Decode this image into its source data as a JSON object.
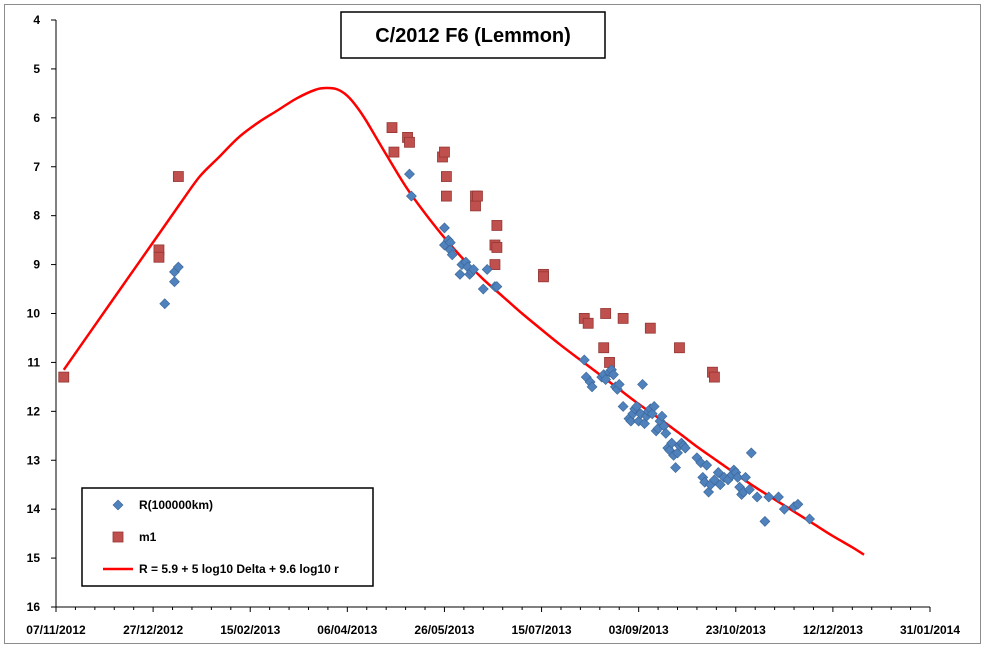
{
  "chart_data": {
    "type": "scatter",
    "title": "C/2012 F6 (Lemmon)",
    "xlabel": "",
    "ylabel": "",
    "x_axis": {
      "type": "date",
      "range": [
        "2012-11-07",
        "2014-01-31"
      ],
      "tick_labels": [
        "07/11/2012",
        "27/12/2012",
        "15/02/2013",
        "06/04/2013",
        "26/05/2013",
        "15/07/2013",
        "03/09/2013",
        "23/10/2013",
        "12/12/2013",
        "31/01/2014"
      ]
    },
    "y_axis": {
      "range": [
        4,
        16
      ],
      "reversed": true,
      "tick_labels": [
        "4",
        "5",
        "6",
        "7",
        "8",
        "9",
        "10",
        "11",
        "12",
        "13",
        "14",
        "15",
        "16"
      ]
    },
    "grid": false,
    "legend_position": "bottom-left",
    "series": [
      {
        "name": "R(100000km)",
        "marker": "diamond",
        "color": "#4f81bd",
        "points": [
          [
            "2013-01-02",
            9.8
          ],
          [
            "2013-01-07",
            9.35
          ],
          [
            "2013-01-07",
            9.15
          ],
          [
            "2013-01-09",
            9.05
          ],
          [
            "2013-05-08",
            7.15
          ],
          [
            "2013-05-09",
            7.6
          ],
          [
            "2013-05-26",
            8.25
          ],
          [
            "2013-05-26",
            8.6
          ],
          [
            "2013-05-28",
            8.5
          ],
          [
            "2013-05-29",
            8.55
          ],
          [
            "2013-05-29",
            8.7
          ],
          [
            "2013-05-30",
            8.8
          ],
          [
            "2013-06-03",
            9.2
          ],
          [
            "2013-06-04",
            9.0
          ],
          [
            "2013-06-06",
            8.95
          ],
          [
            "2013-06-07",
            9.05
          ],
          [
            "2013-06-08",
            9.2
          ],
          [
            "2013-06-09",
            9.15
          ],
          [
            "2013-06-10",
            9.1
          ],
          [
            "2013-06-15",
            9.5
          ],
          [
            "2013-06-17",
            9.1
          ],
          [
            "2013-06-21",
            9.45
          ],
          [
            "2013-06-22",
            9.45
          ],
          [
            "2013-08-06",
            10.95
          ],
          [
            "2013-08-07",
            11.3
          ],
          [
            "2013-08-09",
            11.4
          ],
          [
            "2013-08-10",
            11.5
          ],
          [
            "2013-08-15",
            11.3
          ],
          [
            "2013-08-16",
            11.25
          ],
          [
            "2013-08-17",
            11.35
          ],
          [
            "2013-08-19",
            11.2
          ],
          [
            "2013-08-20",
            11.15
          ],
          [
            "2013-08-21",
            11.25
          ],
          [
            "2013-08-22",
            11.5
          ],
          [
            "2013-08-23",
            11.55
          ],
          [
            "2013-08-24",
            11.45
          ],
          [
            "2013-08-26",
            11.9
          ],
          [
            "2013-08-29",
            12.15
          ],
          [
            "2013-08-30",
            12.2
          ],
          [
            "2013-08-31",
            12.05
          ],
          [
            "2013-09-01",
            11.95
          ],
          [
            "2013-09-02",
            11.9
          ],
          [
            "2013-09-03",
            12.2
          ],
          [
            "2013-09-04",
            12.05
          ],
          [
            "2013-09-05",
            11.45
          ],
          [
            "2013-09-06",
            12.25
          ],
          [
            "2013-09-07",
            12.1
          ],
          [
            "2013-09-08",
            12.0
          ],
          [
            "2013-09-09",
            11.95
          ],
          [
            "2013-09-10",
            12.05
          ],
          [
            "2013-09-11",
            11.9
          ],
          [
            "2013-09-12",
            12.4
          ],
          [
            "2013-09-13",
            12.35
          ],
          [
            "2013-09-14",
            12.2
          ],
          [
            "2013-09-15",
            12.1
          ],
          [
            "2013-09-16",
            12.3
          ],
          [
            "2013-09-17",
            12.45
          ],
          [
            "2013-09-18",
            12.75
          ],
          [
            "2013-09-19",
            12.8
          ],
          [
            "2013-09-20",
            12.65
          ],
          [
            "2013-09-21",
            12.9
          ],
          [
            "2013-09-22",
            13.15
          ],
          [
            "2013-09-23",
            12.85
          ],
          [
            "2013-09-24",
            12.7
          ],
          [
            "2013-09-25",
            12.65
          ],
          [
            "2013-09-26",
            12.7
          ],
          [
            "2013-09-27",
            12.75
          ],
          [
            "2013-10-03",
            12.95
          ],
          [
            "2013-10-05",
            13.05
          ],
          [
            "2013-10-06",
            13.35
          ],
          [
            "2013-10-07",
            13.45
          ],
          [
            "2013-10-08",
            13.1
          ],
          [
            "2013-10-09",
            13.65
          ],
          [
            "2013-10-10",
            13.5
          ],
          [
            "2013-10-12",
            13.4
          ],
          [
            "2013-10-14",
            13.25
          ],
          [
            "2013-10-15",
            13.5
          ],
          [
            "2013-10-17",
            13.35
          ],
          [
            "2013-10-19",
            13.4
          ],
          [
            "2013-10-21",
            13.3
          ],
          [
            "2013-10-22",
            13.2
          ],
          [
            "2013-10-23",
            13.25
          ],
          [
            "2013-10-24",
            13.35
          ],
          [
            "2013-10-25",
            13.55
          ],
          [
            "2013-10-26",
            13.7
          ],
          [
            "2013-10-27",
            13.65
          ],
          [
            "2013-10-28",
            13.35
          ],
          [
            "2013-10-30",
            13.6
          ],
          [
            "2013-10-31",
            12.85
          ],
          [
            "2013-11-03",
            13.75
          ],
          [
            "2013-11-07",
            14.25
          ],
          [
            "2013-11-09",
            13.75
          ],
          [
            "2013-11-14",
            13.75
          ],
          [
            "2013-11-17",
            14.0
          ],
          [
            "2013-11-22",
            13.95
          ],
          [
            "2013-11-24",
            13.9
          ],
          [
            "2013-11-30",
            14.2
          ]
        ]
      },
      {
        "name": "m1",
        "marker": "square",
        "color": "#c0504d",
        "points": [
          [
            "2012-11-11",
            11.3
          ],
          [
            "2012-12-30",
            8.7
          ],
          [
            "2012-12-30",
            8.85
          ],
          [
            "2013-01-09",
            7.2
          ],
          [
            "2013-04-29",
            6.2
          ],
          [
            "2013-04-30",
            6.7
          ],
          [
            "2013-05-07",
            6.4
          ],
          [
            "2013-05-08",
            6.5
          ],
          [
            "2013-05-25",
            6.8
          ],
          [
            "2013-05-26",
            6.7
          ],
          [
            "2013-05-27",
            7.2
          ],
          [
            "2013-05-27",
            7.6
          ],
          [
            "2013-06-11",
            7.6
          ],
          [
            "2013-06-11",
            7.8
          ],
          [
            "2013-06-12",
            7.6
          ],
          [
            "2013-06-22",
            8.2
          ],
          [
            "2013-06-21",
            8.6
          ],
          [
            "2013-06-21",
            9.0
          ],
          [
            "2013-06-22",
            8.65
          ],
          [
            "2013-07-16",
            9.2
          ],
          [
            "2013-07-16",
            9.25
          ],
          [
            "2013-08-06",
            10.1
          ],
          [
            "2013-08-08",
            10.2
          ],
          [
            "2013-08-16",
            10.7
          ],
          [
            "2013-08-17",
            10.0
          ],
          [
            "2013-08-19",
            11.0
          ],
          [
            "2013-08-26",
            10.1
          ],
          [
            "2013-09-09",
            10.3
          ],
          [
            "2013-09-24",
            10.7
          ],
          [
            "2013-10-11",
            11.2
          ],
          [
            "2013-10-12",
            11.3
          ]
        ]
      },
      {
        "name": "R = 5.9 + 5 log10 Delta + 9.6 log10 r",
        "type": "line",
        "color": "#ff0000",
        "points": [
          [
            "2012-11-11",
            11.15
          ],
          [
            "2012-11-26",
            10.3
          ],
          [
            "2012-12-11",
            9.45
          ],
          [
            "2012-12-26",
            8.6
          ],
          [
            "2013-01-10",
            7.75
          ],
          [
            "2013-01-20",
            7.2
          ],
          [
            "2013-01-30",
            6.8
          ],
          [
            "2013-02-09",
            6.4
          ],
          [
            "2013-02-19",
            6.1
          ],
          [
            "2013-03-01",
            5.85
          ],
          [
            "2013-03-11",
            5.6
          ],
          [
            "2013-03-21",
            5.42
          ],
          [
            "2013-03-27",
            5.39
          ],
          [
            "2013-04-01",
            5.42
          ],
          [
            "2013-04-06",
            5.55
          ],
          [
            "2013-04-11",
            5.78
          ],
          [
            "2013-04-16",
            6.08
          ],
          [
            "2013-04-26",
            6.75
          ],
          [
            "2013-05-06",
            7.4
          ],
          [
            "2013-05-16",
            7.95
          ],
          [
            "2013-05-26",
            8.45
          ],
          [
            "2013-06-05",
            8.9
          ],
          [
            "2013-06-15",
            9.3
          ],
          [
            "2013-06-25",
            9.65
          ],
          [
            "2013-07-05",
            10.0
          ],
          [
            "2013-07-15",
            10.33
          ],
          [
            "2013-07-25",
            10.65
          ],
          [
            "2013-08-04",
            10.95
          ],
          [
            "2013-08-14",
            11.25
          ],
          [
            "2013-08-24",
            11.55
          ],
          [
            "2013-09-03",
            11.85
          ],
          [
            "2013-09-13",
            12.13
          ],
          [
            "2013-09-23",
            12.42
          ],
          [
            "2013-10-03",
            12.72
          ],
          [
            "2013-10-13",
            13.0
          ],
          [
            "2013-10-23",
            13.28
          ],
          [
            "2013-11-02",
            13.55
          ],
          [
            "2013-11-12",
            13.8
          ],
          [
            "2013-11-22",
            14.05
          ],
          [
            "2013-12-02",
            14.3
          ],
          [
            "2013-12-12",
            14.55
          ],
          [
            "2013-12-22",
            14.78
          ],
          [
            "2013-12-28",
            14.93
          ]
        ]
      }
    ]
  }
}
